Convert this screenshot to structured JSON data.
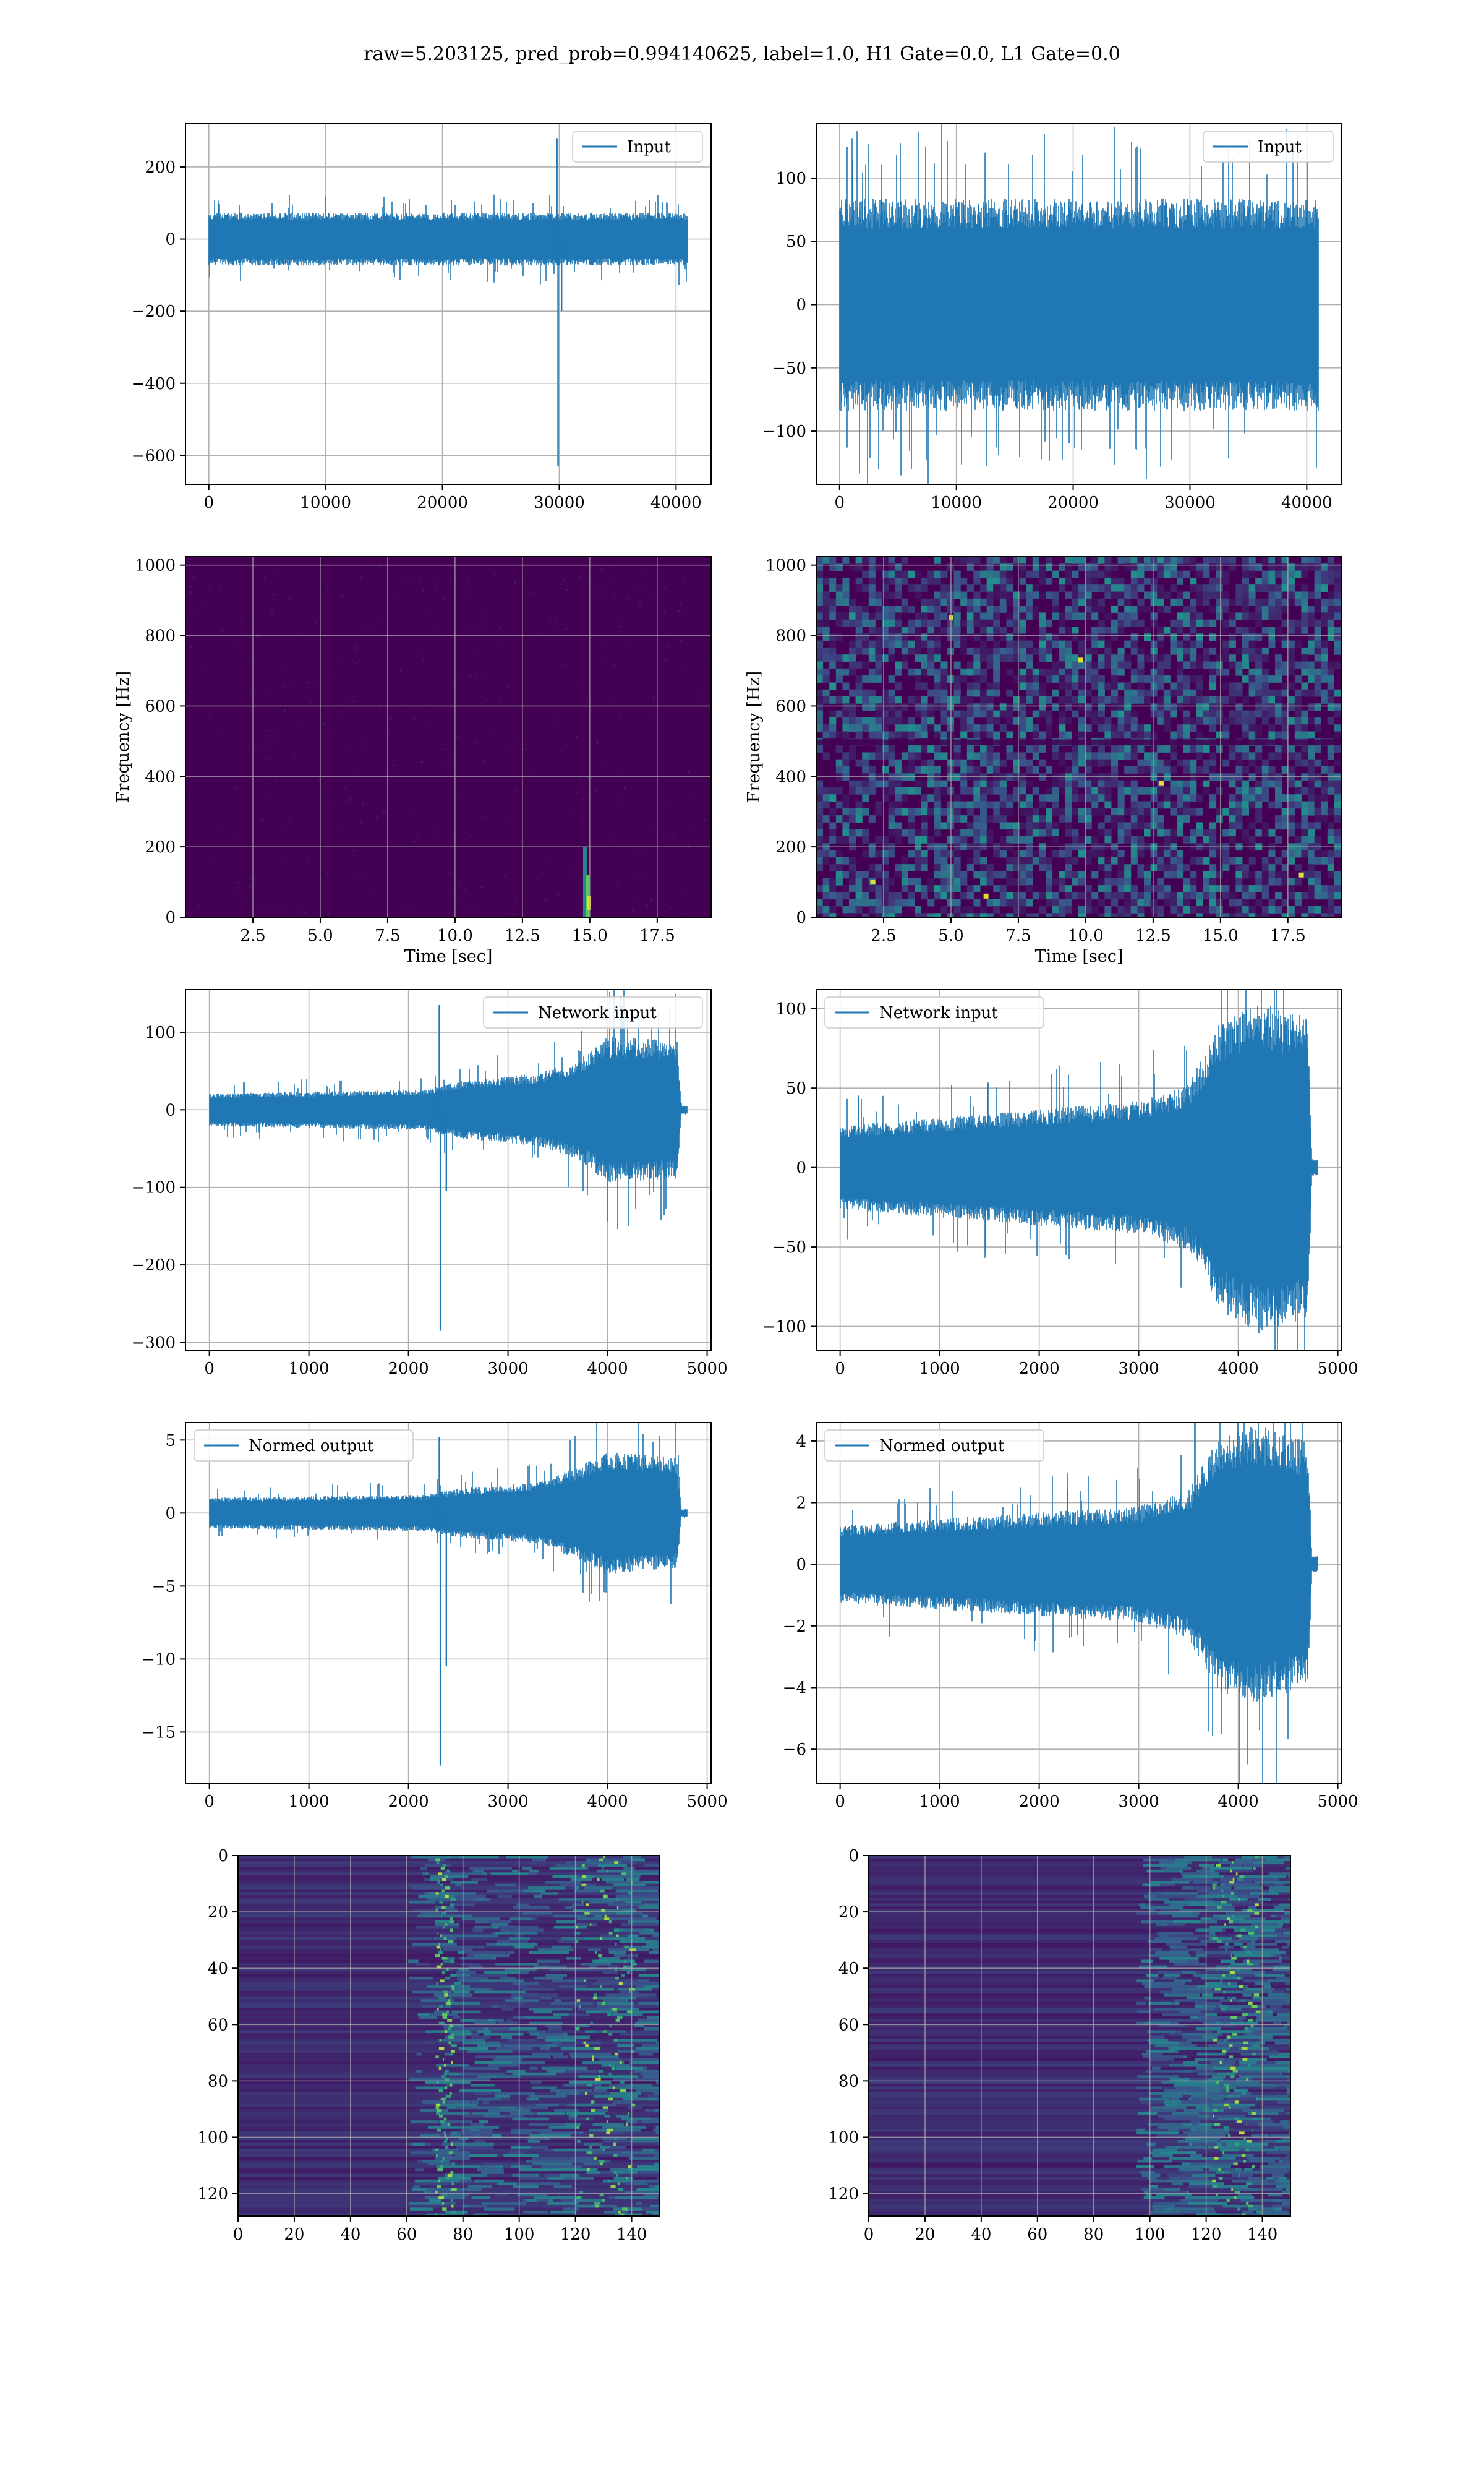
{
  "title": "raw=5.203125, pred_prob=0.994140625, label=1.0, H1 Gate=0.0, L1 Gate=0.0",
  "colors": {
    "line": "#1f77b4",
    "grid": "#b0b0b0",
    "spec_bg": "#440154"
  },
  "chart_data": [
    {
      "type": "line",
      "legend": "Input",
      "legend_loc": "upper right",
      "grid": true,
      "xlim": [
        -2000,
        43000
      ],
      "ylim": [
        -680,
        320
      ],
      "xticks": [
        0,
        10000,
        20000,
        30000,
        40000
      ],
      "yticks": [
        -600,
        -400,
        -200,
        0,
        200
      ],
      "xticklabels": [
        "0",
        "10000",
        "20000",
        "30000",
        "40000"
      ],
      "yticklabels": [
        "−600",
        "−400",
        "−200",
        "0",
        "200"
      ],
      "band": {
        "x": [
          0,
          41000
        ],
        "y": [
          -70,
          70
        ],
        "peaks": [
          -95,
          110
        ]
      },
      "spikes": [
        {
          "x": 29800,
          "y": 280
        },
        {
          "x": 29900,
          "y": -630
        },
        {
          "x": 30200,
          "y": -200
        }
      ]
    },
    {
      "type": "line",
      "legend": "Input",
      "legend_loc": "upper right",
      "grid": true,
      "xlim": [
        -2000,
        43000
      ],
      "ylim": [
        -142,
        143
      ],
      "xticks": [
        0,
        10000,
        20000,
        30000,
        40000
      ],
      "yticks": [
        -100,
        -50,
        0,
        50,
        100
      ],
      "xticklabels": [
        "0",
        "10000",
        "20000",
        "30000",
        "40000"
      ],
      "yticklabels": [
        "−100",
        "−50",
        "0",
        "50",
        "100"
      ],
      "band": {
        "x": [
          0,
          41000
        ],
        "y": [
          -80,
          80
        ],
        "peaks": [
          -130,
          138
        ]
      }
    },
    {
      "type": "heatmap",
      "grid": true,
      "xlabel": "Time [sec]",
      "ylabel": "Frequency [Hz]",
      "xlim": [
        0,
        19.5
      ],
      "ylim": [
        0,
        1024
      ],
      "xticks": [
        2.5,
        5.0,
        7.5,
        10.0,
        12.5,
        15.0,
        17.5
      ],
      "yticks": [
        0,
        200,
        400,
        600,
        800,
        1000
      ],
      "xticklabels": [
        "2.5",
        "5.0",
        "7.5",
        "10.0",
        "12.5",
        "15.0",
        "17.5"
      ],
      "yticklabels": [
        "0",
        "200",
        "400",
        "600",
        "800",
        "1000"
      ],
      "feature": "faint noise; bright glitch near t=14.8 s below 200 Hz"
    },
    {
      "type": "heatmap",
      "grid": true,
      "xlabel": "Time [sec]",
      "ylabel": "Frequency [Hz]",
      "xlim": [
        0,
        19.5
      ],
      "ylim": [
        0,
        1024
      ],
      "xticks": [
        2.5,
        5.0,
        7.5,
        10.0,
        12.5,
        15.0,
        17.5
      ],
      "yticks": [
        0,
        200,
        400,
        600,
        800,
        1000
      ],
      "xticklabels": [
        "2.5",
        "5.0",
        "7.5",
        "10.0",
        "12.5",
        "15.0",
        "17.5"
      ],
      "yticklabels": [
        "0",
        "200",
        "400",
        "600",
        "800",
        "1000"
      ],
      "feature": "speckled broadband noise; darker line near 500 Hz"
    },
    {
      "type": "line",
      "legend": "Network input",
      "legend_loc": "upper right",
      "grid": true,
      "xlim": [
        -240,
        5040
      ],
      "ylim": [
        -310,
        155
      ],
      "xticks": [
        0,
        1000,
        2000,
        3000,
        4000,
        5000
      ],
      "yticks": [
        -300,
        -200,
        -100,
        0,
        100
      ],
      "xticklabels": [
        "0",
        "1000",
        "2000",
        "3000",
        "4000",
        "5000"
      ],
      "yticklabels": [
        "−300",
        "−200",
        "−100",
        "0",
        "100"
      ],
      "envelope": [
        [
          0,
          20
        ],
        [
          2200,
          25
        ],
        [
          2300,
          30
        ],
        [
          2500,
          35
        ],
        [
          3300,
          45
        ],
        [
          3700,
          60
        ],
        [
          4000,
          90
        ],
        [
          4700,
          85
        ],
        [
          4740,
          5
        ],
        [
          4800,
          5
        ]
      ],
      "spikes": [
        {
          "x": 2310,
          "y": 135
        },
        {
          "x": 2320,
          "y": -285
        },
        {
          "x": 2380,
          "y": -105
        }
      ]
    },
    {
      "type": "line",
      "legend": "Network input",
      "legend_loc": "upper left",
      "grid": true,
      "xlim": [
        -240,
        5040
      ],
      "ylim": [
        -115,
        112
      ],
      "xticks": [
        0,
        1000,
        2000,
        3000,
        4000,
        5000
      ],
      "yticks": [
        -100,
        -50,
        0,
        50,
        100
      ],
      "xticklabels": [
        "0",
        "1000",
        "2000",
        "3000",
        "4000",
        "5000"
      ],
      "yticklabels": [
        "−100",
        "−50",
        "0",
        "50",
        "100"
      ],
      "envelope": [
        [
          0,
          25
        ],
        [
          1000,
          30
        ],
        [
          2000,
          35
        ],
        [
          3000,
          40
        ],
        [
          3500,
          50
        ],
        [
          3800,
          85
        ],
        [
          4200,
          100
        ],
        [
          4700,
          90
        ],
        [
          4740,
          5
        ],
        [
          4800,
          5
        ]
      ]
    },
    {
      "type": "line",
      "legend": "Normed output",
      "legend_loc": "upper left",
      "grid": true,
      "xlim": [
        -240,
        5040
      ],
      "ylim": [
        -18.5,
        6.2
      ],
      "xticks": [
        0,
        1000,
        2000,
        3000,
        4000,
        5000
      ],
      "yticks": [
        -15,
        -10,
        -5,
        0,
        5
      ],
      "xticklabels": [
        "0",
        "1000",
        "2000",
        "3000",
        "4000",
        "5000"
      ],
      "yticklabels": [
        "−15",
        "−10",
        "−5",
        "0",
        "5"
      ],
      "envelope": [
        [
          0,
          1.0
        ],
        [
          2200,
          1.2
        ],
        [
          2300,
          1.4
        ],
        [
          2500,
          1.6
        ],
        [
          3300,
          2.0
        ],
        [
          3700,
          3.0
        ],
        [
          4000,
          4.0
        ],
        [
          4700,
          3.6
        ],
        [
          4740,
          0.25
        ],
        [
          4800,
          0.25
        ]
      ],
      "spikes": [
        {
          "x": 2310,
          "y": 5.2
        },
        {
          "x": 2320,
          "y": -17.3
        },
        {
          "x": 2380,
          "y": -10.5
        }
      ]
    },
    {
      "type": "line",
      "legend": "Normed output",
      "legend_loc": "upper left",
      "grid": true,
      "xlim": [
        -240,
        5040
      ],
      "ylim": [
        -7.1,
        4.6
      ],
      "xticks": [
        0,
        1000,
        2000,
        3000,
        4000,
        5000
      ],
      "yticks": [
        -6,
        -4,
        -2,
        0,
        2,
        4
      ],
      "xticklabels": [
        "0",
        "1000",
        "2000",
        "3000",
        "4000",
        "5000"
      ],
      "yticklabels": [
        "−6",
        "−4",
        "−2",
        "0",
        "2",
        "4"
      ],
      "envelope": [
        [
          0,
          1.2
        ],
        [
          1000,
          1.4
        ],
        [
          2000,
          1.6
        ],
        [
          3000,
          1.8
        ],
        [
          3500,
          2.3
        ],
        [
          3800,
          4.0
        ],
        [
          4200,
          4.3
        ],
        [
          4700,
          3.8
        ],
        [
          4740,
          0.25
        ],
        [
          4800,
          0.25
        ]
      ]
    },
    {
      "type": "heatmap",
      "grid": true,
      "xlim": [
        0,
        150
      ],
      "ylim": [
        128,
        0
      ],
      "xticks": [
        0,
        20,
        40,
        60,
        80,
        100,
        120,
        140
      ],
      "yticks": [
        0,
        20,
        40,
        60,
        80,
        100,
        120
      ],
      "xticklabels": [
        "0",
        "20",
        "40",
        "60",
        "80",
        "100",
        "120",
        "140"
      ],
      "yticklabels": [
        "0",
        "20",
        "40",
        "60",
        "80",
        "100",
        "120"
      ],
      "feature": "bright columns near x=73 and x=128"
    },
    {
      "type": "heatmap",
      "grid": true,
      "xlim": [
        0,
        150
      ],
      "ylim": [
        128,
        0
      ],
      "xticks": [
        0,
        20,
        40,
        60,
        80,
        100,
        120,
        140
      ],
      "yticks": [
        0,
        20,
        40,
        60,
        80,
        100,
        120
      ],
      "xticklabels": [
        "0",
        "20",
        "40",
        "60",
        "80",
        "100",
        "120",
        "140"
      ],
      "yticklabels": [
        "0",
        "20",
        "40",
        "60",
        "80",
        "100",
        "120"
      ],
      "feature": "bright column near x=130; activity beyond x=95"
    }
  ]
}
